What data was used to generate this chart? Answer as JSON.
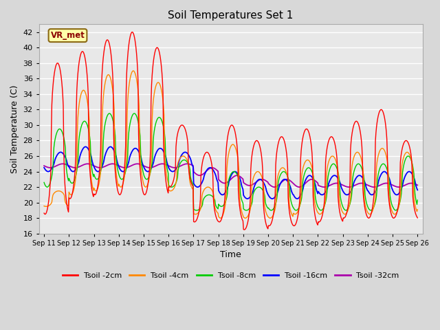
{
  "title": "Soil Temperatures Set 1",
  "xlabel": "Time",
  "ylabel": "Soil Temperature (C)",
  "ylim": [
    16,
    43
  ],
  "yticks": [
    16,
    18,
    20,
    22,
    24,
    26,
    28,
    30,
    32,
    34,
    36,
    38,
    40,
    42
  ],
  "fig_bg_color": "#d8d8d8",
  "plot_bg_color": "#e8e8e8",
  "grid_color": "white",
  "label_box": "VR_met",
  "label_box_facecolor": "#ffffaa",
  "label_box_edgecolor": "#8B6914",
  "label_box_text_color": "#8B0000",
  "series_colors": {
    "Tsoil -2cm": "#ff0000",
    "Tsoil -4cm": "#ff8800",
    "Tsoil -8cm": "#00cc00",
    "Tsoil -16cm": "#0000ff",
    "Tsoil -32cm": "#aa00aa"
  },
  "line_width": 1.0,
  "days": [
    "Sep 11",
    "Sep 12",
    "Sep 13",
    "Sep 14",
    "Sep 15",
    "Sep 16",
    "Sep 17",
    "Sep 18",
    "Sep 19",
    "Sep 20",
    "Sep 21",
    "Sep 22",
    "Sep 23",
    "Sep 24",
    "Sep 25",
    "Sep 26"
  ]
}
